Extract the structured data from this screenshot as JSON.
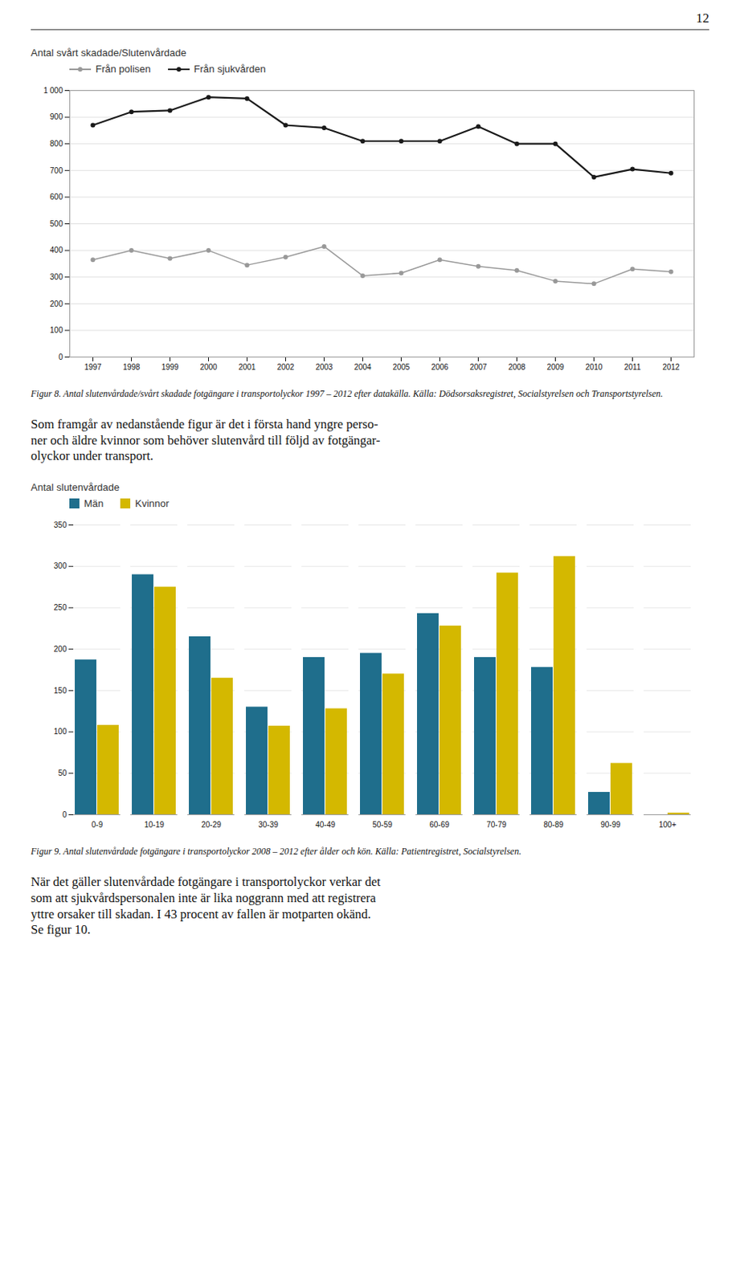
{
  "page_number": "12",
  "paragraphs": [
    [
      "Som framgår av nedanstående figur är det i första hand yngre perso-",
      "ner och äldre kvinnor som behöver slutenvård till följd av fotgängar-",
      "olyckor under transport."
    ],
    [
      "När det gäller slutenvårdade fotgängare i transportolyckor verkar det",
      "som att sjukvårdspersonalen inte är lika noggrann med att registrera",
      "yttre orsaker till skadan. I 43 procent av fallen är motparten okänd.",
      "Se figur 10."
    ]
  ],
  "chart_data": [
    {
      "type": "line",
      "title": "Antal svårt skadade/Slutenvårdade",
      "caption": "Figur 8. Antal slutenvårdade/svårt skadade fotgängare i transportolyckor 1997 – 2012 efter datakälla. Källa: Dödsorsaksregistret, Socialstyrelsen och Transportstyrelsen.",
      "x": [
        1997,
        1998,
        1999,
        2000,
        2001,
        2002,
        2003,
        2004,
        2005,
        2006,
        2007,
        2008,
        2009,
        2010,
        2011,
        2012
      ],
      "series": [
        {
          "name": "Från polisen",
          "color": "#999999",
          "marker": "circle",
          "values": [
            365,
            400,
            370,
            400,
            345,
            375,
            415,
            305,
            315,
            365,
            340,
            325,
            285,
            275,
            330,
            320
          ]
        },
        {
          "name": "Från sjukvården",
          "color": "#1a1a1a",
          "marker": "circle",
          "values": [
            870,
            920,
            925,
            975,
            970,
            870,
            860,
            810,
            810,
            810,
            865,
            800,
            800,
            675,
            705,
            690
          ]
        }
      ],
      "xlim": [
        1996.4,
        2012.6
      ],
      "xticks": [
        1997,
        1998,
        1999,
        2000,
        2001,
        2002,
        2003,
        2004,
        2005,
        2006,
        2007,
        2008,
        2009,
        2010,
        2011,
        2012
      ],
      "ylim": [
        0,
        1000
      ],
      "yticks": [
        0,
        100,
        200,
        300,
        400,
        500,
        600,
        700,
        800,
        900,
        {
          "value": 1000,
          "label": "1 000"
        }
      ],
      "grid": true,
      "legend": "left"
    },
    {
      "type": "bar",
      "title": "Antal slutenvårdade",
      "caption": "Figur 9. Antal slutenvårdade fotgängare i transportolyckor 2008 – 2012 efter ålder och kön. Källa: Patientregistret, Socialstyrelsen.",
      "categories": [
        "0-9",
        "10-19",
        "20-29",
        "30-39",
        "40-49",
        "50-59",
        "60-69",
        "70-79",
        "80-89",
        "90-99",
        "100+"
      ],
      "series": [
        {
          "name": "Män",
          "color": "#1f6e8c",
          "values": [
            187,
            290,
            215,
            130,
            190,
            195,
            243,
            190,
            178,
            27,
            0
          ]
        },
        {
          "name": "Kvinnor",
          "color": "#d4b800",
          "values": [
            108,
            275,
            165,
            107,
            128,
            170,
            228,
            292,
            312,
            62,
            2
          ]
        }
      ],
      "ylim": [
        0,
        350
      ],
      "yticks": [
        0,
        50,
        100,
        150,
        200,
        250,
        300,
        350
      ],
      "grid": true,
      "legend": "upper left"
    }
  ]
}
